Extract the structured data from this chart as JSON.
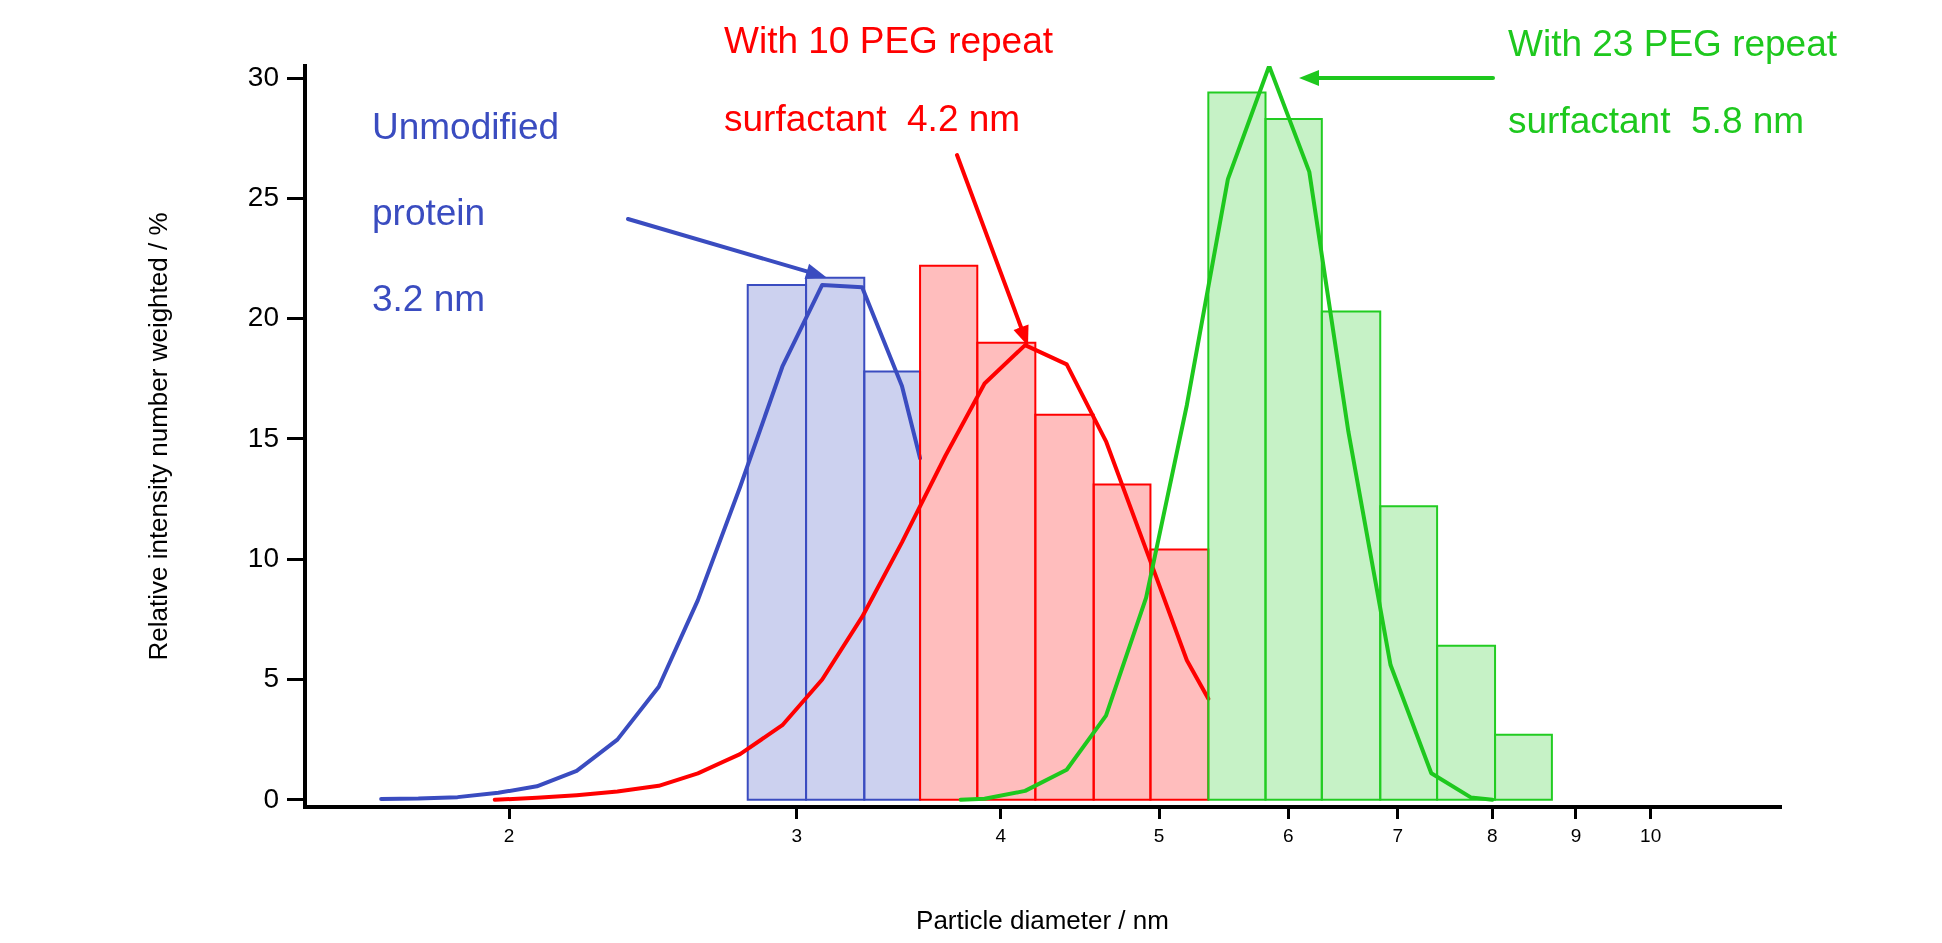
{
  "chart_data": {
    "type": "histogram",
    "xlabel": "Particle diameter / nm",
    "ylabel": "Relative intensity number weighted / %",
    "log": "x",
    "xlim": [
      1.5,
      12
    ],
    "ylim": [
      -0.3,
      30.5
    ],
    "xticks": [
      2,
      3,
      4,
      5,
      6,
      7,
      8,
      9,
      10
    ],
    "yticks": [
      0,
      5,
      10,
      15,
      20,
      25,
      30
    ],
    "series": [
      {
        "color": "#3a4cc0",
        "bins": [
          2.8,
          3.04,
          3.3,
          3.57
        ],
        "values": [
          21.4,
          21.7,
          17.8
        ]
      },
      {
        "type": "line",
        "color": "#3a4cc0",
        "x": [
          1.67,
          1.76,
          1.86,
          1.97,
          2.08,
          2.2,
          2.33,
          2.47,
          2.61,
          2.77,
          2.94,
          3.11,
          3.29,
          3.48,
          3.57
        ],
        "values": [
          0.03,
          0.05,
          0.11,
          0.29,
          0.56,
          1.2,
          2.5,
          4.7,
          8.3,
          13.0,
          18.0,
          21.4,
          21.3,
          17.2,
          14.2
        ]
      },
      {
        "color": "#ff0000",
        "bins": [
          3.57,
          3.87,
          4.2,
          4.56,
          4.94,
          5.36
        ],
        "values": [
          22.2,
          19.0,
          16.0,
          13.1,
          10.4
        ]
      },
      {
        "type": "line",
        "color": "#ff0000",
        "x": [
          1.96,
          2.08,
          2.2,
          2.33,
          2.47,
          2.61,
          2.77,
          2.94,
          3.11,
          3.29,
          3.48,
          3.7,
          3.91,
          4.14,
          4.39,
          4.64,
          4.91,
          5.2,
          5.36
        ],
        "values": [
          0,
          0.08,
          0.19,
          0.34,
          0.58,
          1.1,
          1.9,
          3.1,
          5.0,
          7.6,
          10.7,
          14.3,
          17.3,
          18.9,
          18.1,
          14.9,
          10.4,
          5.8,
          4.2
        ]
      },
      {
        "color": "#22cc22",
        "bins": [
          5.36,
          5.81,
          6.29,
          6.83,
          7.4,
          8.03,
          8.7
        ],
        "values": [
          29.4,
          28.3,
          20.3,
          12.2,
          6.4,
          2.7
        ]
      },
      {
        "type": "line",
        "color": "#1ec81e",
        "x": [
          3.78,
          3.91,
          4.14,
          4.39,
          4.64,
          4.91,
          5.2,
          5.51,
          5.84,
          6.18,
          6.53,
          6.93,
          7.34,
          7.76,
          8.0
        ],
        "values": [
          0,
          0.04,
          0.37,
          1.25,
          3.5,
          8.4,
          16.4,
          25.8,
          30.5,
          26.1,
          15.3,
          5.6,
          1.1,
          0.1,
          0
        ]
      }
    ],
    "annotations": [
      "Unmodified protein 3.2 nm",
      "With 10 PEG repeat surfactant  4.2 nm",
      "With 23 PEG repeat surfactant  5.8 nm"
    ]
  }
}
